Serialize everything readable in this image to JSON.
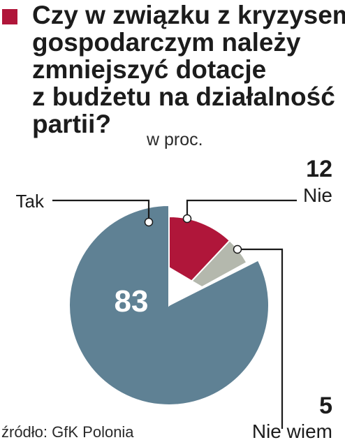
{
  "title_lines": [
    "Czy w związku z kryzysem",
    "gospodarczym należy",
    "zmniejszyć dotacje",
    "z budżetu na działalność",
    "partii?"
  ],
  "unit": "w proc.",
  "source": "źródło: GfK Polonia",
  "colors": {
    "marker": "#b0163a",
    "tak": "#5f8194",
    "nie": "#b0163a",
    "nie_wiem": "#b4b8ad"
  },
  "chart_data": {
    "type": "pie",
    "slices": [
      {
        "label": "Tak",
        "value": 83,
        "value_text": "83",
        "color": "#5f8194"
      },
      {
        "label": "Nie",
        "value": 12,
        "value_text": "12",
        "color": "#b0163a"
      },
      {
        "label": "Nie wiem",
        "value": 5,
        "value_text": "5",
        "color": "#b4b8ad"
      }
    ]
  }
}
